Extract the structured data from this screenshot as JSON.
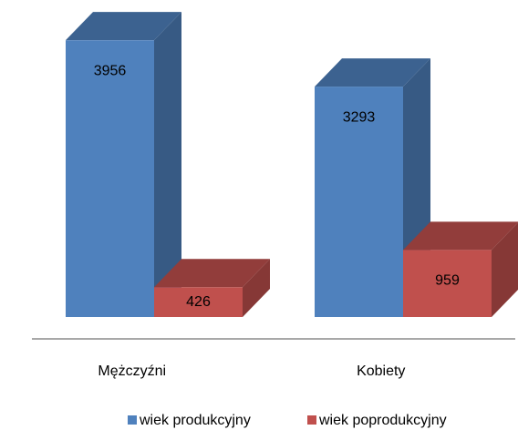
{
  "chart_data": {
    "type": "bar3d",
    "categories": [
      "Mężczyźni",
      "Kobiety"
    ],
    "series": [
      {
        "name": "wiek produkcyjny",
        "color": "#4f81bd",
        "values": [
          3956,
          3293
        ]
      },
      {
        "name": "wiek poprodukcyjny",
        "color": "#c0504d",
        "values": [
          426,
          959
        ]
      }
    ]
  }
}
